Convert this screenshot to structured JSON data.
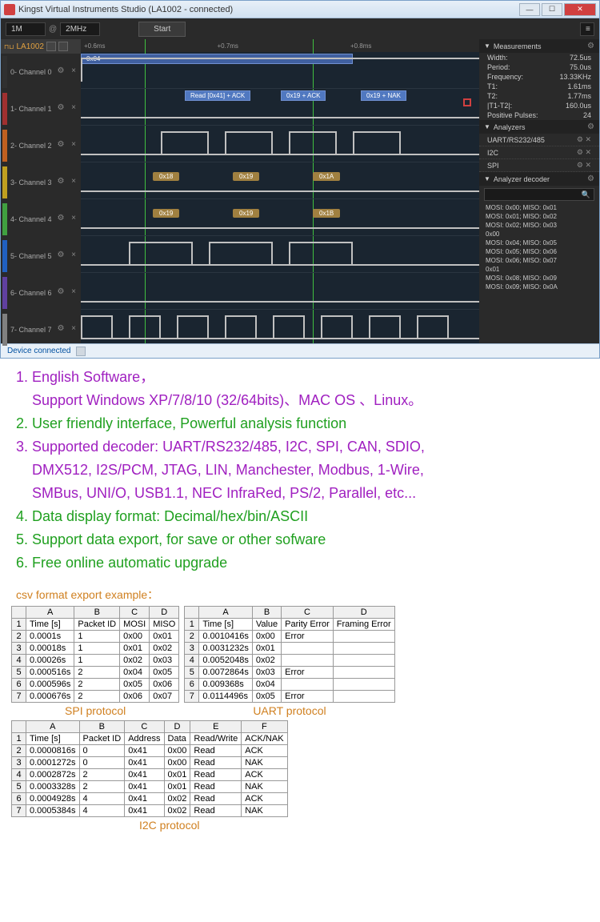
{
  "window": {
    "title": "Kingst Virtual Instruments Studio (LA1002 - connected)"
  },
  "toolbar": {
    "sel1": "1M",
    "sel2": "2MHz",
    "start": "Start"
  },
  "device_header": "LA1002",
  "channels": [
    {
      "label": "0- Channel 0",
      "color": "#303030"
    },
    {
      "label": "1- Channel 1",
      "color": "#a03030"
    },
    {
      "label": "2- Channel 2",
      "color": "#c06020"
    },
    {
      "label": "3- Channel 3",
      "color": "#c0a020"
    },
    {
      "label": "4- Channel 4",
      "color": "#40a040"
    },
    {
      "label": "5- Channel 5",
      "color": "#2060c0"
    },
    {
      "label": "6- Channel 6",
      "color": "#6040a0"
    },
    {
      "label": "7- Channel 7",
      "color": "#808080"
    }
  ],
  "ruler": {
    "t1": "+0.6ms",
    "t2": "+0.7ms",
    "t3": "+0.8ms"
  },
  "wave_blocks": {
    "b0": "0x04",
    "r1": "Read [0x41] + ACK",
    "r2": "0x19 + ACK",
    "r3": "0x19 + NAK",
    "h1": "0x18",
    "h2": "0x19",
    "h3": "0x1A",
    "h4": "0x19",
    "h5": "0x19",
    "h6": "0x1B"
  },
  "measurements": {
    "title": "Measurements",
    "rows": [
      {
        "k": "Width:",
        "v": "72.5us"
      },
      {
        "k": "Period:",
        "v": "75.0us"
      },
      {
        "k": "Frequency:",
        "v": "13.33KHz"
      },
      {
        "k": "T1:",
        "v": "1.61ms"
      },
      {
        "k": "T2:",
        "v": "1.77ms"
      },
      {
        "k": "|T1-T2|:",
        "v": "160.0us"
      },
      {
        "k": "Positive Pulses:",
        "v": "24"
      }
    ]
  },
  "analyzers": {
    "title": "Analyzers",
    "items": [
      "UART/RS232/485",
      "I2C",
      "SPI"
    ]
  },
  "decoder": {
    "title": "Analyzer decoder",
    "lines": [
      "MOSI: 0x00;  MISO: 0x01",
      "MOSI: 0x01;  MISO: 0x02",
      "MOSI: 0x02;  MISO: 0x03",
      "0x00",
      "MOSI: 0x04;  MISO: 0x05",
      "MOSI: 0x05;  MISO: 0x06",
      "MOSI: 0x06;  MISO: 0x07",
      "0x01",
      "MOSI: 0x08;  MISO: 0x09",
      "MOSI: 0x09;  MISO: 0x0A"
    ]
  },
  "statusbar": "Device connected",
  "features": [
    {
      "cls": "purple",
      "text": "1. English Software，"
    },
    {
      "cls": "purple",
      "text": "    Support Windows XP/7/8/10 (32/64bits)、MAC OS 、Linux。"
    },
    {
      "cls": "green",
      "text": "2. User friendly interface, Powerful analysis function"
    },
    {
      "cls": "purple",
      "text": "3. Supported decoder: UART/RS232/485, I2C, SPI, CAN, SDIO,"
    },
    {
      "cls": "purple",
      "text": "    DMX512, I2S/PCM, JTAG, LIN, Manchester, Modbus, 1-Wire,"
    },
    {
      "cls": "purple",
      "text": "    SMBus, UNI/O, USB1.1, NEC InfraRed, PS/2, Parallel, etc..."
    },
    {
      "cls": "green",
      "text": "4. Data display format: Decimal/hex/bin/ASCII"
    },
    {
      "cls": "green",
      "text": "5. Support data export, for save or other sofware"
    },
    {
      "cls": "green",
      "text": "6. Free online automatic upgrade"
    }
  ],
  "csv_header": "csv format export example：",
  "spi_table": {
    "label": "SPI protocol",
    "cols": [
      "",
      "A",
      "B",
      "C",
      "D"
    ],
    "head": [
      "1",
      "Time [s]",
      "Packet ID",
      "MOSI",
      "MISO"
    ],
    "rows": [
      [
        "2",
        "0.0001s",
        "1",
        "0x00",
        "0x01"
      ],
      [
        "3",
        "0.00018s",
        "1",
        "0x01",
        "0x02"
      ],
      [
        "4",
        "0.00026s",
        "1",
        "0x02",
        "0x03"
      ],
      [
        "5",
        "0.000516s",
        "2",
        "0x04",
        "0x05"
      ],
      [
        "6",
        "0.000596s",
        "2",
        "0x05",
        "0x06"
      ],
      [
        "7",
        "0.000676s",
        "2",
        "0x06",
        "0x07"
      ]
    ]
  },
  "uart_table": {
    "label": "UART protocol",
    "cols": [
      "",
      "A",
      "B",
      "C",
      "D"
    ],
    "head": [
      "1",
      "Time [s]",
      "Value",
      "Parity Error",
      "Framing Error"
    ],
    "rows": [
      [
        "2",
        "0.0010416s",
        "0x00",
        "Error",
        ""
      ],
      [
        "3",
        "0.0031232s",
        "0x01",
        "",
        ""
      ],
      [
        "4",
        "0.0052048s",
        "0x02",
        "",
        ""
      ],
      [
        "5",
        "0.0072864s",
        "0x03",
        "Error",
        ""
      ],
      [
        "6",
        "0.009368s",
        "0x04",
        "",
        ""
      ],
      [
        "7",
        "0.0114496s",
        "0x05",
        "Error",
        ""
      ]
    ]
  },
  "i2c_table": {
    "label": "I2C protocol",
    "cols": [
      "",
      "A",
      "B",
      "C",
      "D",
      "E",
      "F"
    ],
    "head": [
      "1",
      "Time [s]",
      "Packet ID",
      "Address",
      "Data",
      "Read/Write",
      "ACK/NAK"
    ],
    "rows": [
      [
        "2",
        "0.0000816s",
        "0",
        "0x41",
        "0x00",
        "Read",
        "ACK"
      ],
      [
        "3",
        "0.0001272s",
        "0",
        "0x41",
        "0x00",
        "Read",
        "NAK"
      ],
      [
        "4",
        "0.0002872s",
        "2",
        "0x41",
        "0x01",
        "Read",
        "ACK"
      ],
      [
        "5",
        "0.0003328s",
        "2",
        "0x41",
        "0x01",
        "Read",
        "NAK"
      ],
      [
        "6",
        "0.0004928s",
        "4",
        "0x41",
        "0x02",
        "Read",
        "ACK"
      ],
      [
        "7",
        "0.0005384s",
        "4",
        "0x41",
        "0x02",
        "Read",
        "NAK"
      ]
    ]
  }
}
